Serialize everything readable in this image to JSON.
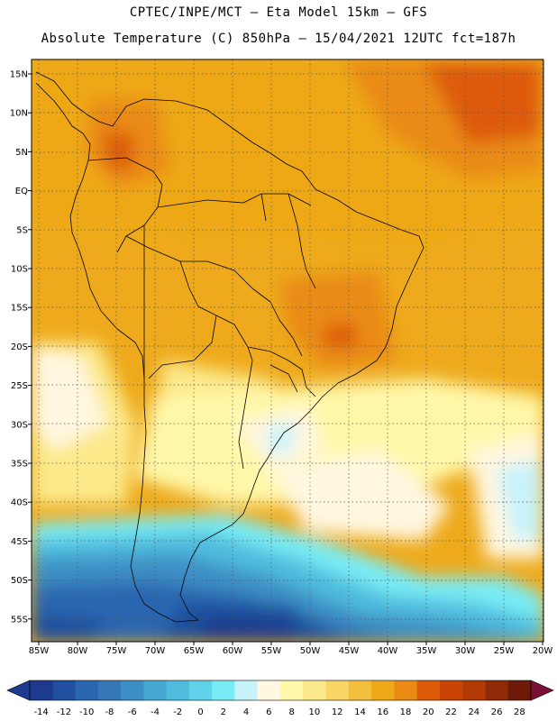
{
  "header": {
    "line1": "CPTEC/INPE/MCT –  Eta Model 15km – GFS",
    "line2": "Absolute Temperature (C) 850hPa – 15/04/2021 12UTC fct=187h"
  },
  "map": {
    "lat_labels": [
      "15N",
      "10N",
      "5N",
      "EQ",
      "5S",
      "10S",
      "15S",
      "20S",
      "25S",
      "30S",
      "35S",
      "40S",
      "45S",
      "50S",
      "55S"
    ],
    "lon_labels": [
      "85W",
      "80W",
      "75W",
      "70W",
      "65W",
      "60W",
      "55W",
      "50W",
      "45W",
      "40W",
      "35W",
      "30W",
      "25W",
      "20W"
    ],
    "grid_lines": "dotted"
  },
  "colorbar": {
    "ticks": [
      "-14",
      "-12",
      "-10",
      "-8",
      "-6",
      "-4",
      "-2",
      "0",
      "2",
      "4",
      "6",
      "8",
      "10",
      "12",
      "14",
      "16",
      "18",
      "20",
      "22",
      "24",
      "26",
      "28"
    ],
    "colors": [
      "#1d3a8f",
      "#1f4f9e",
      "#2a66b0",
      "#3478b8",
      "#3c8fc4",
      "#45a7d2",
      "#4fbcde",
      "#5fd3ea",
      "#78ecf5",
      "#c9f3fa",
      "#fff7e0",
      "#fff7a8",
      "#fce98a",
      "#f8d564",
      "#f2c03c",
      "#eea817",
      "#e98b12",
      "#dd5a08",
      "#c94506",
      "#b23a05",
      "#8e2a05",
      "#6e1a08"
    ],
    "under_color": "#1d3a8f",
    "over_color": "#7a1036"
  }
}
